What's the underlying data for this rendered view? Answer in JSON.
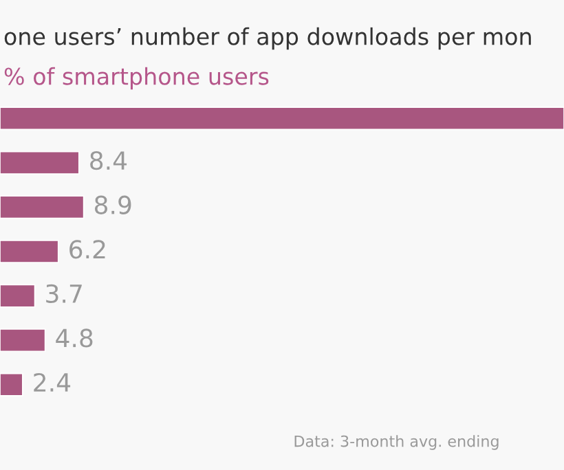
{
  "chart_data": {
    "type": "bar",
    "orientation": "horizontal",
    "title": "one users’ number of app downloads per mon",
    "subtitle": "% of smartphone users",
    "categories": [
      null,
      null,
      null,
      null,
      null,
      null,
      null
    ],
    "values": [
      60,
      8.4,
      8.9,
      6.2,
      3.7,
      4.8,
      2.4
    ],
    "value_labels": [
      null,
      "8.4",
      "8.9",
      "6.2",
      "3.7",
      "4.8",
      "2.4"
    ],
    "color": "#a8567f",
    "xlim": [
      0,
      60
    ],
    "tick_labels": false,
    "annotations": [
      "Data: 3-month avg. ending"
    ]
  }
}
